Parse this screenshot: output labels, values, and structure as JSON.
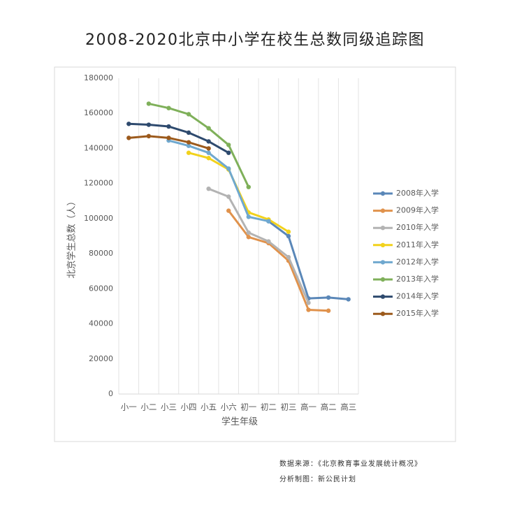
{
  "chart_data": {
    "type": "line",
    "title": "2008-2020北京中小学在校生总数同级追踪图",
    "x_label": "学生年级",
    "y_label": "北京学生总数（人）",
    "categories": [
      "小一",
      "小二",
      "小三",
      "小四",
      "小五",
      "小六",
      "初一",
      "初二",
      "初三",
      "高一",
      "高二",
      "高三"
    ],
    "series": [
      {
        "name": "2008年入学",
        "color": "#5a87b8",
        "values": [
          null,
          null,
          null,
          null,
          null,
          null,
          null,
          98500,
          90000,
          54500,
          55000,
          54000
        ]
      },
      {
        "name": "2009年入学",
        "color": "#e0924c",
        "values": [
          null,
          null,
          null,
          null,
          null,
          104500,
          89500,
          86000,
          76000,
          48000,
          47500,
          null
        ]
      },
      {
        "name": "2010年入学",
        "color": "#b3b3b3",
        "values": [
          null,
          null,
          null,
          null,
          117000,
          112500,
          92000,
          87000,
          78000,
          52000,
          null,
          null
        ]
      },
      {
        "name": "2011年入学",
        "color": "#f2d21c",
        "values": [
          null,
          null,
          null,
          137500,
          134500,
          128000,
          103500,
          99500,
          92500,
          null,
          null,
          null
        ]
      },
      {
        "name": "2012年入学",
        "color": "#6fa8cf",
        "values": [
          null,
          null,
          144500,
          141500,
          137500,
          128500,
          101000,
          98500,
          null,
          null,
          null,
          null
        ]
      },
      {
        "name": "2013年入学",
        "color": "#7fb05a",
        "values": [
          null,
          165500,
          163000,
          159500,
          151500,
          142000,
          118000,
          null,
          null,
          null,
          null,
          null
        ]
      },
      {
        "name": "2014年入学",
        "color": "#2e4a6e",
        "values": [
          154000,
          153500,
          152500,
          149000,
          144000,
          137500,
          null,
          null,
          null,
          null,
          null,
          null
        ]
      },
      {
        "name": "2015年入学",
        "color": "#9c5a1c",
        "values": [
          146000,
          147000,
          146000,
          143500,
          140000,
          null,
          null,
          null,
          null,
          null,
          null,
          null
        ]
      }
    ],
    "ylim": [
      0,
      180000
    ],
    "yticks": [
      0,
      20000,
      40000,
      60000,
      80000,
      100000,
      120000,
      140000,
      160000,
      180000
    ],
    "legend": "right",
    "notes": [
      "数据来源：《北京教育事业发展统计概况》",
      "分析制图：新公民计划"
    ]
  }
}
